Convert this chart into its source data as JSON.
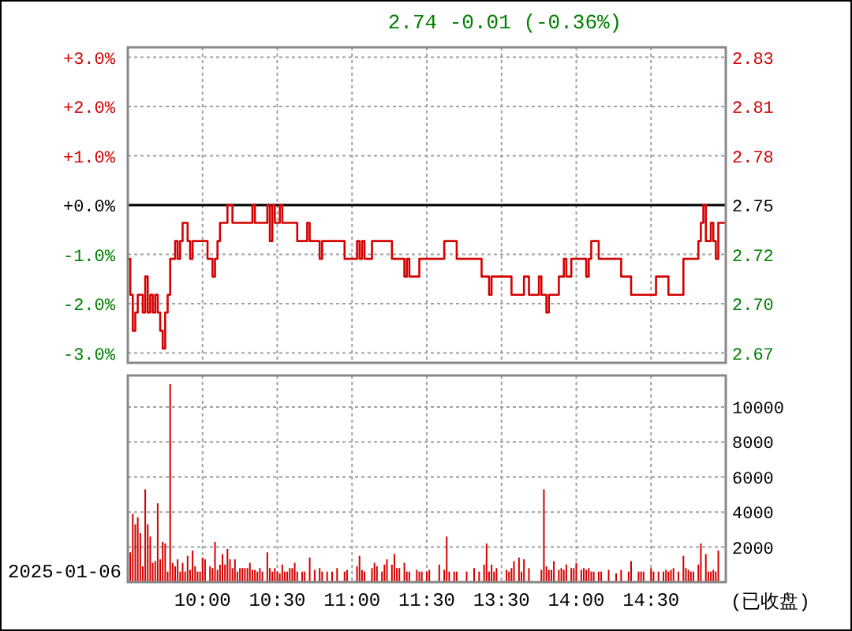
{
  "chart_data": [
    {
      "type": "step",
      "subtitle": "2.74 -0.01 (-0.36%)",
      "categories": [
        null,
        null,
        null,
        null,
        null,
        null,
        null,
        null,
        null,
        null,
        null,
        null,
        null,
        null,
        null,
        null,
        null,
        null,
        null,
        null,
        null,
        null,
        null,
        null,
        null,
        null,
        null,
        null,
        null,
        null,
        null,
        null,
        null,
        null,
        null,
        null,
        null,
        null,
        null,
        null,
        null,
        null,
        null,
        null,
        null,
        null,
        null,
        null,
        null,
        null,
        null,
        null,
        null,
        null,
        null,
        null,
        null,
        null,
        null,
        null,
        null,
        null,
        null,
        null,
        null,
        null,
        null,
        null,
        null,
        null,
        null,
        null,
        null,
        null,
        null,
        null,
        null,
        null,
        null,
        null,
        null,
        null,
        null,
        null,
        null,
        null,
        null,
        null,
        null,
        null,
        null,
        null,
        null,
        null,
        null,
        null,
        null,
        null,
        null,
        null,
        null,
        null,
        null,
        null,
        null,
        null,
        null,
        null,
        null,
        null,
        null,
        null,
        null,
        null,
        null,
        null,
        null,
        null,
        null,
        null,
        null,
        null,
        null,
        null,
        null,
        null,
        null,
        null,
        null,
        null,
        null,
        null,
        null,
        null,
        null,
        null,
        null,
        null,
        null,
        null,
        null,
        null,
        null,
        null,
        null,
        null,
        null,
        null,
        null,
        null,
        null,
        null,
        null,
        null,
        null,
        null,
        null,
        null,
        null,
        null,
        null,
        null,
        null,
        null,
        null,
        null,
        null,
        null,
        null,
        null,
        null,
        null,
        null,
        null,
        null,
        null,
        null,
        null,
        null,
        null,
        null,
        null,
        null,
        null,
        null,
        null,
        null,
        null,
        null,
        null,
        null,
        null,
        null,
        null,
        null,
        null,
        null,
        null,
        null,
        null,
        null,
        null,
        null,
        null,
        null,
        null,
        null,
        null,
        null,
        null,
        null,
        null,
        null,
        null,
        null,
        null,
        null,
        null,
        null,
        null,
        null,
        null,
        null,
        null,
        null,
        null,
        null,
        null,
        null,
        null,
        null,
        null,
        null,
        null,
        null,
        null,
        null,
        null,
        null,
        null,
        null
      ],
      "series": [
        {
          "color": "#d40000",
          "values": [
            -1.09,
            -1.82,
            -2.55,
            -2.18,
            -1.82,
            -1.82,
            -2.18,
            -1.45,
            -2.18,
            -1.82,
            -2.18,
            -1.82,
            -2.18,
            -2.55,
            -2.91,
            -2.18,
            -1.82,
            -1.09,
            -1.09,
            -0.73,
            -1.09,
            -0.73,
            -0.36,
            -0.36,
            -0.73,
            -1.09,
            -0.73,
            -0.73,
            -0.73,
            -0.73,
            -0.73,
            -0.73,
            -1.09,
            -1.09,
            -1.45,
            -1.09,
            -0.73,
            -0.36,
            -0.36,
            -0.36,
            0,
            0,
            -0.36,
            -0.36,
            -0.36,
            -0.36,
            -0.36,
            -0.36,
            -0.36,
            -0.36,
            0,
            -0.36,
            -0.36,
            -0.36,
            -0.36,
            -0.36,
            0,
            -0.73,
            0,
            -0.36,
            -0.36,
            0,
            -0.36,
            -0.36,
            -0.36,
            -0.36,
            -0.36,
            -0.36,
            -0.73,
            -0.73,
            -0.73,
            -0.73,
            -0.36,
            -0.73,
            -0.73,
            -0.73,
            -0.73,
            -1.09,
            -0.73,
            -0.73,
            -0.73,
            -0.73,
            -0.73,
            -0.73,
            -0.73,
            -0.73,
            -0.73,
            -1.09,
            -1.09,
            -1.09,
            -1.09,
            -1.09,
            -0.73,
            -1.09,
            -0.73,
            -1.09,
            -1.09,
            -1.09,
            -0.73,
            -0.73,
            -0.73,
            -0.73,
            -0.73,
            -0.73,
            -0.73,
            -0.73,
            -1.09,
            -1.09,
            -1.09,
            -1.09,
            -1.09,
            -1.45,
            -1.09,
            -1.45,
            -1.45,
            -1.45,
            -1.45,
            -1.09,
            -1.09,
            -1.09,
            -1.09,
            -1.09,
            -1.09,
            -1.09,
            -1.09,
            -1.09,
            -1.09,
            -0.73,
            -0.73,
            -0.73,
            -0.73,
            -0.73,
            -1.09,
            -1.09,
            -1.09,
            -1.09,
            -1.09,
            -1.09,
            -1.09,
            -1.09,
            -1.09,
            -1.09,
            -1.45,
            -1.45,
            -1.45,
            -1.82,
            -1.45,
            -1.45,
            -1.45,
            -1.45,
            -1.45,
            -1.45,
            -1.45,
            -1.45,
            -1.82,
            -1.82,
            -1.82,
            -1.82,
            -1.82,
            -1.45,
            -1.45,
            -1.82,
            -1.82,
            -1.82,
            -1.82,
            -1.45,
            -1.82,
            -1.82,
            -2.18,
            -1.82,
            -1.82,
            -1.82,
            -1.82,
            -1.45,
            -1.45,
            -1.09,
            -1.45,
            -1.45,
            -1.09,
            -1.09,
            -1.09,
            -1.09,
            -1.09,
            -1.09,
            -1.45,
            -1.09,
            -0.73,
            -0.73,
            -0.73,
            -1.09,
            -1.09,
            -1.09,
            -1.09,
            -1.09,
            -1.09,
            -1.09,
            -1.09,
            -1.09,
            -1.45,
            -1.45,
            -1.45,
            -1.45,
            -1.82,
            -1.82,
            -1.82,
            -1.82,
            -1.82,
            -1.82,
            -1.82,
            -1.82,
            -1.82,
            -1.82,
            -1.45,
            -1.45,
            -1.45,
            -1.45,
            -1.45,
            -1.82,
            -1.82,
            -1.82,
            -1.82,
            -1.82,
            -1.82,
            -1.09,
            -1.09,
            -1.09,
            -1.09,
            -1.09,
            -1.09,
            -0.73,
            -0.36,
            0,
            -0.73,
            -0.73,
            -0.36,
            -0.73,
            -1.09,
            -0.36,
            -0.36,
            -0.36,
            -0.36
          ]
        }
      ],
      "ylim": [
        -3.2,
        3.2
      ],
      "yticks": [
        {
          "value": 3,
          "label": "+3.0%"
        },
        {
          "value": 2,
          "label": "+2.0%"
        },
        {
          "value": 1,
          "label": "+1.0%"
        },
        {
          "value": 0,
          "label": "+0.0%"
        },
        {
          "value": -1,
          "label": "-1.0%"
        },
        {
          "value": -2,
          "label": "-2.0%"
        },
        {
          "value": -3,
          "label": "-3.0%"
        }
      ],
      "y2lim": [
        2.662,
        2.838
      ],
      "y2ticks": [
        {
          "value": 2.8325,
          "label": "2.83"
        },
        {
          "value": 2.805,
          "label": "2.81"
        },
        {
          "value": 2.7775,
          "label": "2.78"
        },
        2.75,
        {
          "value": 2.7225,
          "label": "2.72"
        },
        {
          "value": 2.695,
          "label": "2.70"
        },
        {
          "value": 2.6675,
          "label": "2.67"
        }
      ],
      "ref_lines": [
        {
          "axis": "y",
          "value": 0,
          "color": "#000000"
        }
      ],
      "grid": true,
      "tick_labels": "y"
    },
    {
      "type": "bar",
      "categories": [
        null,
        null,
        null,
        null,
        null,
        null,
        null,
        null,
        null,
        null,
        null,
        null,
        null,
        null,
        null,
        null,
        null,
        null,
        null,
        null,
        null,
        null,
        null,
        null,
        null,
        null,
        null,
        null,
        null,
        null,
        "10:00",
        null,
        null,
        null,
        null,
        null,
        null,
        null,
        null,
        null,
        null,
        null,
        null,
        null,
        null,
        null,
        null,
        null,
        null,
        null,
        null,
        null,
        null,
        null,
        null,
        null,
        null,
        null,
        null,
        null,
        "10:30",
        null,
        null,
        null,
        null,
        null,
        null,
        null,
        null,
        null,
        null,
        null,
        null,
        null,
        null,
        null,
        null,
        null,
        null,
        null,
        null,
        null,
        null,
        null,
        null,
        null,
        null,
        null,
        null,
        null,
        "11:00",
        null,
        null,
        null,
        null,
        null,
        null,
        null,
        null,
        null,
        null,
        null,
        null,
        null,
        null,
        null,
        null,
        null,
        null,
        null,
        null,
        null,
        null,
        null,
        null,
        null,
        null,
        null,
        null,
        null,
        "11:30",
        null,
        null,
        null,
        null,
        null,
        null,
        null,
        null,
        null,
        null,
        null,
        null,
        null,
        null,
        null,
        null,
        null,
        null,
        null,
        null,
        null,
        null,
        null,
        null,
        null,
        null,
        null,
        null,
        null,
        "13:30",
        null,
        null,
        null,
        null,
        null,
        null,
        null,
        null,
        null,
        null,
        null,
        null,
        null,
        null,
        null,
        null,
        null,
        null,
        null,
        null,
        null,
        null,
        null,
        null,
        null,
        null,
        null,
        null,
        null,
        "14:00",
        null,
        null,
        null,
        null,
        null,
        null,
        null,
        null,
        null,
        null,
        null,
        null,
        null,
        null,
        null,
        null,
        null,
        null,
        null,
        null,
        null,
        null,
        null,
        null,
        null,
        null,
        null,
        null,
        null,
        "14:30",
        null,
        null,
        null,
        null,
        null,
        null,
        null,
        null,
        null,
        null,
        null,
        null,
        null,
        null,
        null,
        null,
        null,
        null,
        null,
        null,
        null,
        null,
        null,
        null,
        null,
        null,
        null,
        null,
        null,
        null
      ],
      "series": [
        {
          "color": "#d40000",
          "axis": "y2",
          "values": [
            null,
            1700,
            3900,
            3300,
            3700,
            2800,
            900,
            5300,
            3300,
            2600,
            1100,
            1200,
            4500,
            1300,
            2300,
            2200,
            600,
            11300,
            1100,
            900,
            1300,
            600,
            1100,
            600,
            1500,
            700,
            1800,
            900,
            600,
            600,
            1400,
            1300,
            null,
            900,
            800,
            2300,
            700,
            1000,
            1600,
            1000,
            1900,
            1300,
            800,
            1300,
            600,
            800,
            800,
            800,
            800,
            1100,
            700,
            700,
            600,
            800,
            600,
            null,
            1700,
            800,
            600,
            800,
            600,
            500,
            1000,
            600,
            600,
            800,
            800,
            1100,
            600,
            null,
            600,
            600,
            null,
            1400,
            null,
            700,
            null,
            800,
            600,
            null,
            600,
            null,
            600,
            null,
            800,
            null,
            null,
            600,
            700,
            null,
            null,
            null,
            900,
            1500,
            700,
            600,
            null,
            null,
            800,
            1100,
            900,
            null,
            600,
            1000,
            1300,
            null,
            1000,
            1600,
            800,
            800,
            null,
            1100,
            600,
            600,
            null,
            null,
            700,
            600,
            600,
            null,
            600,
            700,
            null,
            null,
            null,
            1000,
            null,
            700,
            2600,
            600,
            null,
            600,
            600,
            null,
            null,
            null,
            600,
            null,
            null,
            800,
            null,
            600,
            null,
            1000,
            2200,
            600,
            1000,
            600,
            800,
            null,
            null,
            null,
            700,
            600,
            800,
            1200,
            null,
            1400,
            600,
            1300,
            null,
            800,
            null,
            null,
            null,
            null,
            700,
            5300,
            900,
            700,
            700,
            1200,
            null,
            700,
            800,
            700,
            1000,
            null,
            800,
            800,
            1100,
            null,
            700,
            800,
            700,
            800,
            600,
            600,
            null,
            600,
            600,
            null,
            null,
            700,
            null,
            null,
            500,
            null,
            700,
            null,
            null,
            600,
            1200,
            null,
            null,
            600,
            600,
            600,
            null,
            null,
            800,
            600,
            null,
            600,
            null,
            600,
            700,
            600,
            700,
            800,
            null,
            600,
            null,
            1500,
            800,
            700,
            600,
            600,
            null,
            1000,
            2200,
            null,
            1600,
            600,
            600,
            700,
            600,
            1800,
            null,
            null,
            null
          ]
        }
      ],
      "y2lim": [
        0,
        11800
      ],
      "y2ticks": [
        2000,
        4000,
        6000,
        8000,
        10000
      ],
      "grid": true,
      "annotations": [
        "2025-01-06",
        "(已收盘)"
      ]
    }
  ]
}
